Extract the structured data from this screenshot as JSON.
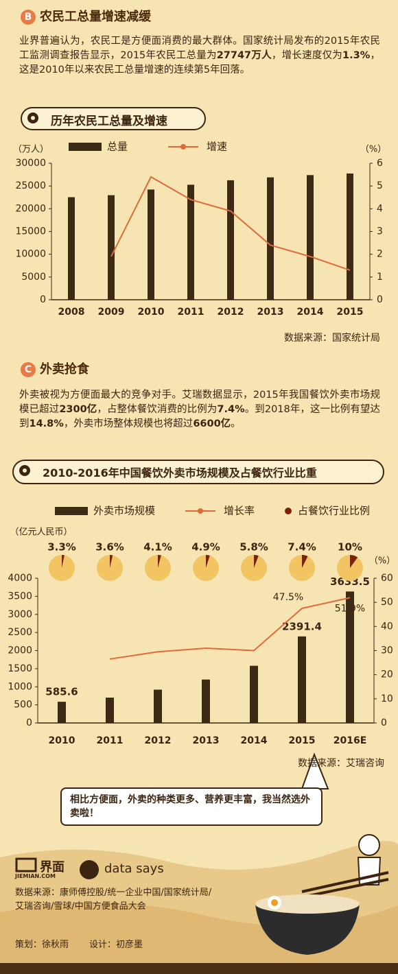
{
  "sections": [
    {
      "badge": "B",
      "title": "农民工总量增速减缓",
      "paragraph": [
        {
          "text": "业界普遍认为，农民工是方便面消费的最大群体。国家统计局发布的2015年农民工监测调查报告显示，2015年农民工总量为"
        },
        {
          "text": "27747万人",
          "bold": true
        },
        {
          "text": "，增长速度仅为"
        },
        {
          "text": "1.3%",
          "bold": true
        },
        {
          "text": "，这是2010年以来农民工总量增速的连续第5年回落。"
        }
      ]
    },
    {
      "badge": "C",
      "title": "外卖抢食",
      "paragraph": [
        {
          "text": "外卖被视为方便面最大的竞争对手。艾瑞数据显示，2015年我国餐饮外卖市场规模已超过"
        },
        {
          "text": "2300亿",
          "bold": true
        },
        {
          "text": "，占整体餐饮消费的比例为"
        },
        {
          "text": "7.4%",
          "bold": true
        },
        {
          "text": "。到2018年，这一比例有望达到"
        },
        {
          "text": "14.8%",
          "bold": true
        },
        {
          "text": "，外卖市场整体规模也将超过"
        },
        {
          "text": "6600亿",
          "bold": true
        },
        {
          "text": "。"
        }
      ]
    }
  ],
  "chart_data": [
    {
      "type": "combo",
      "title": "历年农民工总量及增速",
      "y_label": "（万人）",
      "y2_label": "（%）",
      "source": "数据来源：国家统计局",
      "categories": [
        "2008",
        "2009",
        "2010",
        "2011",
        "2012",
        "2013",
        "2014",
        "2015"
      ],
      "series": [
        {
          "name": "总量",
          "kind": "bar",
          "color": "#3d2a14",
          "values": [
            22542,
            22978,
            24223,
            25278,
            26261,
            26894,
            27395,
            27747
          ]
        },
        {
          "name": "增速",
          "kind": "line",
          "axis": "y2",
          "color": "#e0693a",
          "values": [
            null,
            1.9,
            5.4,
            4.4,
            3.9,
            2.4,
            1.9,
            1.3
          ]
        }
      ],
      "ylim": [
        0,
        30000
      ],
      "yticks": [
        0,
        5000,
        10000,
        15000,
        20000,
        25000,
        30000
      ],
      "y2lim": [
        0,
        6
      ],
      "y2ticks": [
        0,
        1,
        2,
        3,
        4,
        5,
        6
      ]
    },
    {
      "type": "combo",
      "title": "2010-2016年中国餐饮外卖市场规模及占餐饮行业比重",
      "y_label": "（亿元人民币）",
      "y2_label": "（%）",
      "source": "数据来源：艾瑞咨询",
      "categories": [
        "2010",
        "2011",
        "2012",
        "2013",
        "2014",
        "2015",
        "2016E"
      ],
      "series": [
        {
          "name": "外卖市场规模",
          "kind": "bar",
          "color": "#3d2a14",
          "values": [
            585.6,
            700,
            920,
            1200,
            1580,
            2391.4,
            3633.5
          ],
          "value_labels": [
            "585.6",
            null,
            null,
            null,
            null,
            "2391.4",
            "3633.5"
          ]
        },
        {
          "name": "增长率",
          "kind": "line",
          "axis": "y2",
          "color": "#e0693a",
          "values": [
            null,
            26.5,
            29.5,
            31,
            30,
            47.5,
            51.9
          ],
          "value_labels": [
            null,
            null,
            null,
            null,
            null,
            "47.5%",
            "51.9%"
          ]
        },
        {
          "name": "占餐饮行业比例",
          "kind": "pie",
          "color": "#7a2410",
          "values": [
            3.3,
            3.6,
            4.1,
            4.9,
            5.8,
            7.4,
            10
          ],
          "value_labels": [
            "3.3%",
            "3.6%",
            "4.1%",
            "4.9%",
            "5.8%",
            "7.4%",
            "10%"
          ]
        }
      ],
      "ylim": [
        0,
        4000
      ],
      "yticks": [
        0,
        500,
        1000,
        1500,
        2000,
        2500,
        3000,
        3500,
        4000
      ],
      "y2lim": [
        0,
        60
      ],
      "y2ticks": [
        0,
        10,
        20,
        30,
        40,
        50,
        60
      ]
    }
  ],
  "bubble": "相比方便面，外卖的种类更多、营养更丰富，我当然选外卖啦！",
  "footer": {
    "logo": "界面",
    "logo_url": "JIEMIAN.COM",
    "brand": "data says",
    "source": "数据来源：康师傅控股/统一企业中国/国家统计局/艾瑞咨询/雪球/中国方便食品大会",
    "planner": "策划：徐秋雨",
    "designer": "设计：初彦墨"
  }
}
